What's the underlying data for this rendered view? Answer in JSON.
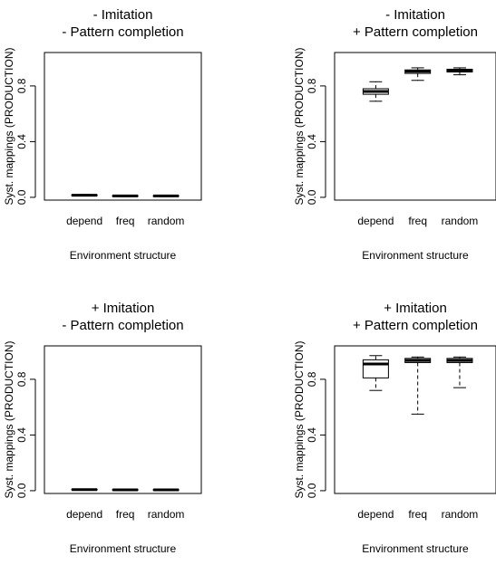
{
  "chart_data": [
    {
      "type": "boxplot",
      "title_line1": "- Imitation",
      "title_line2": "- Pattern completion",
      "xlabel": "Environment structure",
      "ylabel": "Syst. mappings (PRODUCTION)",
      "ylim": [
        -0.02,
        1.04
      ],
      "yticks": [
        0.0,
        0.4,
        0.8
      ],
      "ytick_labels": [
        "0.0",
        "0.4",
        "0.8"
      ],
      "categories": [
        "depend",
        "freq",
        "random"
      ],
      "boxes": [
        {
          "category": "depend",
          "min": 0.01,
          "q1": 0.012,
          "median": 0.015,
          "q3": 0.018,
          "max": 0.02
        },
        {
          "category": "freq",
          "min": 0.005,
          "q1": 0.007,
          "median": 0.01,
          "q3": 0.012,
          "max": 0.014
        },
        {
          "category": "random",
          "min": 0.005,
          "q1": 0.007,
          "median": 0.01,
          "q3": 0.012,
          "max": 0.014
        }
      ]
    },
    {
      "type": "boxplot",
      "title_line1": "- Imitation",
      "title_line2": "+ Pattern completion",
      "xlabel": "Environment structure",
      "ylabel": "Syst. mappings (PRODUCTION)",
      "ylim": [
        -0.02,
        1.04
      ],
      "yticks": [
        0.0,
        0.4,
        0.8
      ],
      "ytick_labels": [
        "0.0",
        "0.4",
        "0.8"
      ],
      "categories": [
        "depend",
        "freq",
        "random"
      ],
      "boxes": [
        {
          "category": "depend",
          "min": 0.69,
          "q1": 0.74,
          "median": 0.76,
          "q3": 0.78,
          "max": 0.83
        },
        {
          "category": "freq",
          "min": 0.84,
          "q1": 0.89,
          "median": 0.905,
          "q3": 0.915,
          "max": 0.93
        },
        {
          "category": "random",
          "min": 0.88,
          "q1": 0.9,
          "median": 0.91,
          "q3": 0.92,
          "max": 0.93
        }
      ]
    },
    {
      "type": "boxplot",
      "title_line1": "+ Imitation",
      "title_line2": "- Pattern completion",
      "xlabel": "Environment structure",
      "ylabel": "Syst. mappings (PRODUCTION)",
      "ylim": [
        -0.02,
        1.04
      ],
      "yticks": [
        0.0,
        0.4,
        0.8
      ],
      "ytick_labels": [
        "0.0",
        "0.4",
        "0.8"
      ],
      "categories": [
        "depend",
        "freq",
        "random"
      ],
      "boxes": [
        {
          "category": "depend",
          "min": 0.004,
          "q1": 0.006,
          "median": 0.008,
          "q3": 0.01,
          "max": 0.012
        },
        {
          "category": "freq",
          "min": 0.002,
          "q1": 0.004,
          "median": 0.006,
          "q3": 0.008,
          "max": 0.01
        },
        {
          "category": "random",
          "min": 0.002,
          "q1": 0.004,
          "median": 0.006,
          "q3": 0.008,
          "max": 0.01
        }
      ]
    },
    {
      "type": "boxplot",
      "title_line1": "+ Imitation",
      "title_line2": "+ Pattern completion",
      "xlabel": "Environment structure",
      "ylabel": "Syst. mappings (PRODUCTION)",
      "ylim": [
        -0.02,
        1.04
      ],
      "yticks": [
        0.0,
        0.4,
        0.8
      ],
      "ytick_labels": [
        "0.0",
        "0.4",
        "0.8"
      ],
      "categories": [
        "depend",
        "freq",
        "random"
      ],
      "boxes": [
        {
          "category": "depend",
          "min": 0.72,
          "q1": 0.81,
          "median": 0.91,
          "q3": 0.94,
          "max": 0.97
        },
        {
          "category": "freq",
          "min": 0.55,
          "q1": 0.92,
          "median": 0.935,
          "q3": 0.95,
          "max": 0.96
        },
        {
          "category": "random",
          "min": 0.74,
          "q1": 0.92,
          "median": 0.935,
          "q3": 0.95,
          "max": 0.96
        }
      ]
    }
  ]
}
